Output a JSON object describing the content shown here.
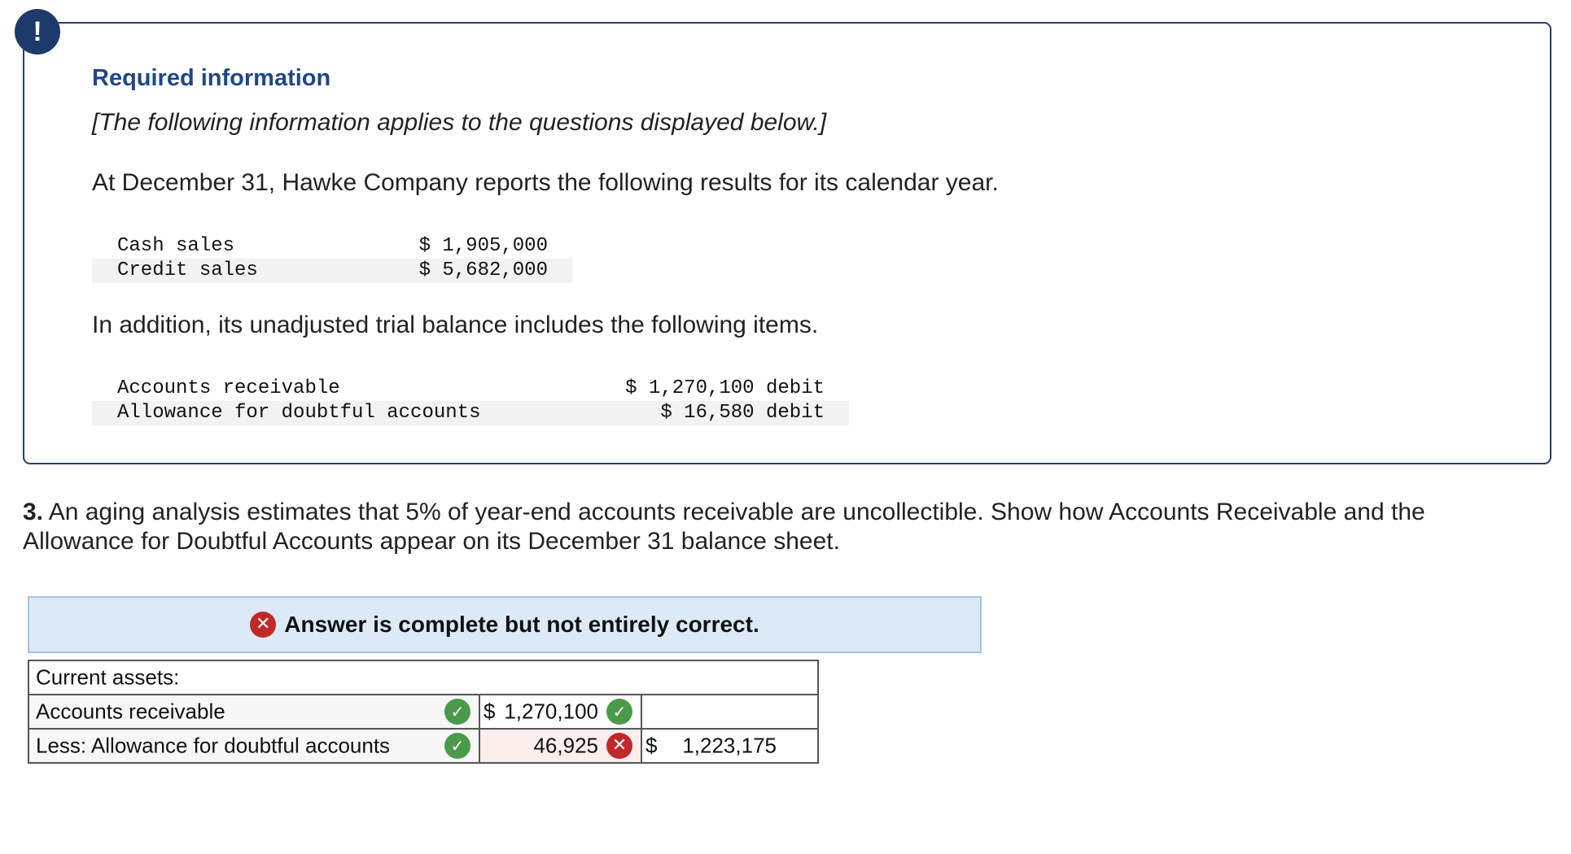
{
  "info_box": {
    "badge": "!",
    "title": "Required information",
    "note": "[The following information applies to the questions displayed below.]",
    "intro": "At December 31, Hawke Company reports the following results for its calendar year.",
    "sales_rows": [
      {
        "label": "Cash sales",
        "value": "$ 1,905,000"
      },
      {
        "label": "Credit sales",
        "value": "$ 5,682,000"
      }
    ],
    "addition": "In addition, its unadjusted trial balance includes the following items.",
    "trial_rows": [
      {
        "label": "Accounts receivable",
        "value": "$ 1,270,100 debit"
      },
      {
        "label": "Allowance for doubtful accounts",
        "value": "$ 16,580 debit"
      }
    ]
  },
  "question": {
    "number": "3.",
    "text": "An aging analysis estimates that 5% of year-end accounts receivable are uncollectible. Show how Accounts Receivable and the Allowance for Doubtful Accounts appear on its December 31 balance sheet."
  },
  "banner": {
    "text": "Answer is complete but not entirely correct."
  },
  "answer_table": {
    "header": "Current assets:",
    "rows": [
      {
        "label": "Accounts receivable",
        "dollar": "$",
        "value": "1,270,100",
        "value_status": "correct",
        "total_dollar": "",
        "total": ""
      },
      {
        "label": "Less: Allowance for doubtful accounts",
        "dollar": "",
        "value": "46,925",
        "value_status": "incorrect",
        "total_dollar": "$",
        "total": "1,223,175"
      }
    ]
  },
  "colors": {
    "badge": "#1e3a6b",
    "title": "#1f4788",
    "banner_bg": "#dce9f7",
    "correct": "#4a9a4c",
    "incorrect": "#c0282a"
  },
  "icons": {
    "correct": "check-circle-icon",
    "incorrect": "x-circle-icon",
    "info": "exclamation-icon"
  }
}
